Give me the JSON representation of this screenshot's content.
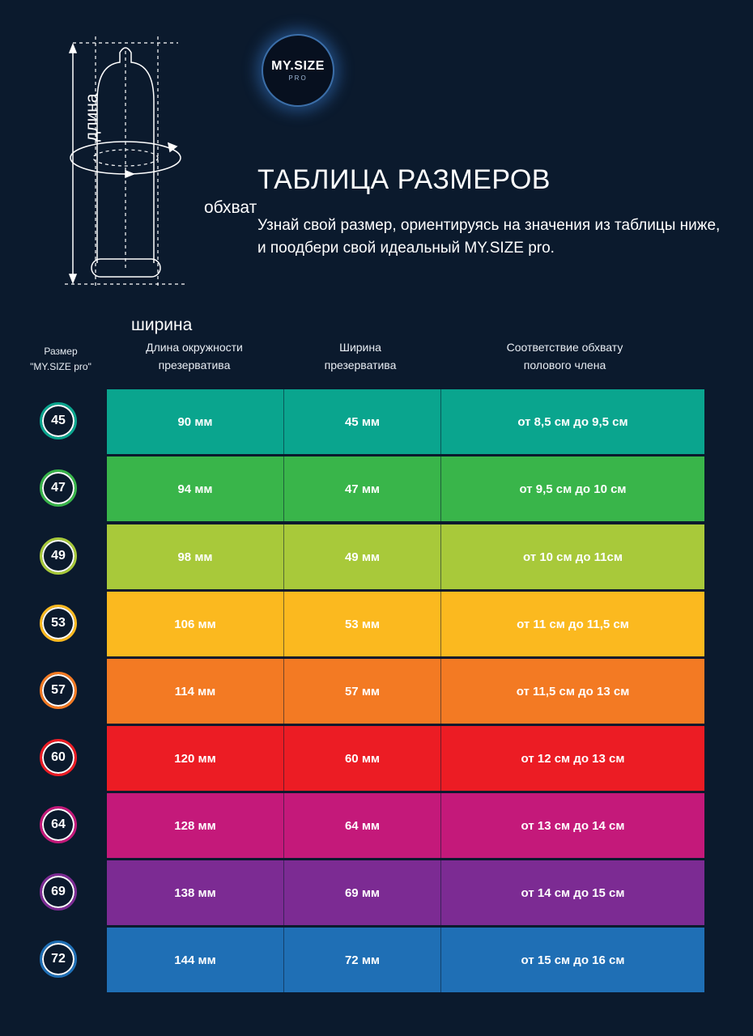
{
  "diagram": {
    "length_label": "длина",
    "girth_label": "обхват",
    "width_label": "ширина"
  },
  "logo": {
    "main": "MY.SIZE",
    "sub": "PRO"
  },
  "title": "ТАБЛИЦА РАЗМЕРОВ",
  "subtitle": "Узнай свой размер, ориентируясь на значения из таблицы ниже, и поодбери свой идеальный MY.SIZE pro.",
  "table": {
    "headers": {
      "size_line1": "Размер",
      "size_line2": "\"MY.SIZE pro\"",
      "length_line1": "Длина окружности",
      "length_line2": "презерватива",
      "width_line1": "Ширина",
      "width_line2": "презерватива",
      "fit_line1": "Соответствие обхвату",
      "fit_line2": "полового члена"
    },
    "rows": [
      {
        "size": "45",
        "length": "90 мм",
        "width": "45 мм",
        "fit": "от 8,5 см до 9,5 см",
        "color": "#0aa58e"
      },
      {
        "size": "47",
        "length": "94 мм",
        "width": "47 мм",
        "fit": "от 9,5 см до 10 см",
        "color": "#39b54a"
      },
      {
        "size": "49",
        "length": "98 мм",
        "width": "49 мм",
        "fit": "от 10 см до 11см",
        "color": "#a8c93a"
      },
      {
        "size": "53",
        "length": "106 мм",
        "width": "53 мм",
        "fit": "от 11 см до 11,5 см",
        "color": "#fbb91f"
      },
      {
        "size": "57",
        "length": "114 мм",
        "width": "57 мм",
        "fit": "от 11,5 см до 13 см",
        "color": "#f37a23"
      },
      {
        "size": "60",
        "length": "120 мм",
        "width": "60 мм",
        "fit": "от 12 см до 13 см",
        "color": "#ec1c24"
      },
      {
        "size": "64",
        "length": "128 мм",
        "width": "64 мм",
        "fit": "от 13 см до 14 см",
        "color": "#c4197a"
      },
      {
        "size": "69",
        "length": "138 мм",
        "width": "69 мм",
        "fit": "от 14 см до 15 см",
        "color": "#7c2b93"
      },
      {
        "size": "72",
        "length": "144 мм",
        "width": "72 мм",
        "fit": "от 15 см до 16 см",
        "color": "#1f6fb5"
      }
    ]
  }
}
